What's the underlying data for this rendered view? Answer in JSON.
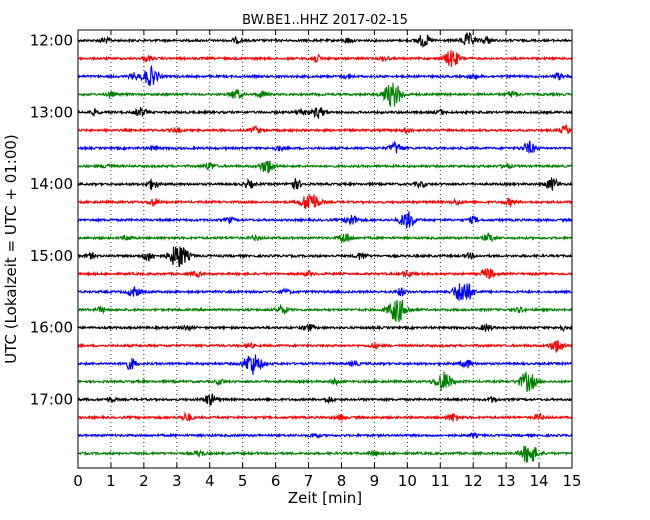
{
  "chart_data": {
    "type": "line",
    "title": "BW.BE1..HHZ 2017-02-15",
    "xlabel": "Zeit  [min]",
    "ylabel": "UTC (Lokalzeit = UTC + 01:00)",
    "xlim": [
      0,
      15
    ],
    "x_ticks": [
      0,
      1,
      2,
      3,
      4,
      5,
      6,
      7,
      8,
      9,
      10,
      11,
      12,
      13,
      14,
      15
    ],
    "x_tick_labels": [
      "0",
      "1",
      "2",
      "3",
      "4",
      "5",
      "6",
      "7",
      "8",
      "9",
      "10",
      "11",
      "12",
      "13",
      "14",
      "15"
    ],
    "y_tick_labels": [
      "12:00",
      "13:00",
      "14:00",
      "15:00",
      "16:00",
      "17:00"
    ],
    "y_tick_rows": [
      0,
      4,
      8,
      12,
      16,
      20
    ],
    "grid": {
      "x": true,
      "y": false,
      "style": "dotted"
    },
    "color_cycle": [
      "#000000",
      "#ff0000",
      "#0000ff",
      "#008000"
    ],
    "series": [
      {
        "start": "12:00",
        "bursts": [
          [
            10.5,
            0.5
          ],
          [
            11.85,
            0.55
          ],
          [
            12.4,
            0.3
          ],
          [
            0.8,
            0.25
          ],
          [
            4.8,
            0.2
          ],
          [
            8.2,
            0.2
          ]
        ]
      },
      {
        "start": "12:15",
        "bursts": [
          [
            11.35,
            0.7
          ],
          [
            7.2,
            0.35
          ],
          [
            9.3,
            0.2
          ],
          [
            2.1,
            0.2
          ]
        ]
      },
      {
        "start": "12:30",
        "bursts": [
          [
            2.2,
            0.75
          ],
          [
            1.7,
            0.25
          ],
          [
            8.2,
            0.2
          ],
          [
            12.0,
            0.2
          ],
          [
            14.6,
            0.25
          ]
        ]
      },
      {
        "start": "12:45",
        "bursts": [
          [
            9.55,
            1.0
          ],
          [
            4.8,
            0.4
          ],
          [
            5.6,
            0.25
          ],
          [
            13.2,
            0.25
          ],
          [
            1.0,
            0.2
          ]
        ]
      },
      {
        "start": "13:00",
        "bursts": [
          [
            1.9,
            0.35
          ],
          [
            6.8,
            0.3
          ],
          [
            7.3,
            0.45
          ],
          [
            0.5,
            0.2
          ],
          [
            11.0,
            0.2
          ]
        ]
      },
      {
        "start": "13:15",
        "bursts": [
          [
            5.4,
            0.3
          ],
          [
            14.8,
            0.35
          ],
          [
            10.0,
            0.2
          ],
          [
            3.0,
            0.2
          ]
        ]
      },
      {
        "start": "13:30",
        "bursts": [
          [
            9.65,
            0.45
          ],
          [
            13.7,
            0.5
          ],
          [
            2.3,
            0.2
          ],
          [
            6.1,
            0.2
          ]
        ]
      },
      {
        "start": "13:45",
        "bursts": [
          [
            5.75,
            0.6
          ],
          [
            4.0,
            0.3
          ],
          [
            0.9,
            0.2
          ],
          [
            13.0,
            0.2
          ]
        ]
      },
      {
        "start": "14:00",
        "bursts": [
          [
            2.25,
            0.4
          ],
          [
            6.6,
            0.4
          ],
          [
            14.4,
            0.5
          ],
          [
            5.2,
            0.3
          ],
          [
            10.4,
            0.25
          ]
        ]
      },
      {
        "start": "14:15",
        "bursts": [
          [
            7.05,
            0.85
          ],
          [
            2.3,
            0.3
          ],
          [
            13.1,
            0.25
          ],
          [
            11.5,
            0.2
          ]
        ]
      },
      {
        "start": "14:30",
        "bursts": [
          [
            10.0,
            0.7
          ],
          [
            8.3,
            0.45
          ],
          [
            12.0,
            0.25
          ],
          [
            4.6,
            0.2
          ]
        ]
      },
      {
        "start": "14:45",
        "bursts": [
          [
            8.1,
            0.4
          ],
          [
            12.5,
            0.35
          ],
          [
            1.5,
            0.2
          ],
          [
            5.4,
            0.2
          ]
        ]
      },
      {
        "start": "15:00",
        "bursts": [
          [
            3.05,
            1.0
          ],
          [
            2.15,
            0.4
          ],
          [
            8.6,
            0.3
          ],
          [
            0.4,
            0.2
          ],
          [
            11.9,
            0.2
          ]
        ]
      },
      {
        "start": "15:15",
        "bursts": [
          [
            12.45,
            0.45
          ],
          [
            10.0,
            0.25
          ],
          [
            3.6,
            0.2
          ],
          [
            7.0,
            0.2
          ]
        ]
      },
      {
        "start": "15:30",
        "bursts": [
          [
            11.7,
            1.0
          ],
          [
            1.7,
            0.4
          ],
          [
            9.8,
            0.3
          ],
          [
            6.3,
            0.2
          ]
        ]
      },
      {
        "start": "15:45",
        "bursts": [
          [
            9.7,
            1.0
          ],
          [
            6.2,
            0.35
          ],
          [
            0.7,
            0.2
          ],
          [
            13.4,
            0.2
          ]
        ]
      },
      {
        "start": "16:00",
        "bursts": [
          [
            7.0,
            0.3
          ],
          [
            12.4,
            0.3
          ],
          [
            3.3,
            0.2
          ],
          [
            14.7,
            0.2
          ]
        ]
      },
      {
        "start": "16:15",
        "bursts": [
          [
            14.55,
            0.55
          ],
          [
            9.0,
            0.2
          ],
          [
            5.2,
            0.2
          ]
        ]
      },
      {
        "start": "16:30",
        "bursts": [
          [
            5.3,
            0.9
          ],
          [
            1.6,
            0.45
          ],
          [
            11.8,
            0.35
          ],
          [
            8.4,
            0.2
          ]
        ]
      },
      {
        "start": "16:45",
        "bursts": [
          [
            11.1,
            0.8
          ],
          [
            13.65,
            0.8
          ],
          [
            4.3,
            0.2
          ],
          [
            7.8,
            0.2
          ]
        ]
      },
      {
        "start": "17:00",
        "bursts": [
          [
            4.0,
            0.45
          ],
          [
            7.6,
            0.25
          ],
          [
            1.0,
            0.2
          ],
          [
            12.6,
            0.2
          ]
        ]
      },
      {
        "start": "17:15",
        "bursts": [
          [
            3.3,
            0.35
          ],
          [
            11.4,
            0.35
          ],
          [
            14.0,
            0.25
          ],
          [
            8.0,
            0.2
          ]
        ]
      },
      {
        "start": "17:30",
        "bursts": [
          [
            7.2,
            0.2
          ],
          [
            12.0,
            0.15
          ]
        ]
      },
      {
        "start": "17:45",
        "bursts": [
          [
            13.7,
            0.85
          ],
          [
            3.7,
            0.25
          ],
          [
            9.0,
            0.2
          ]
        ]
      }
    ]
  }
}
